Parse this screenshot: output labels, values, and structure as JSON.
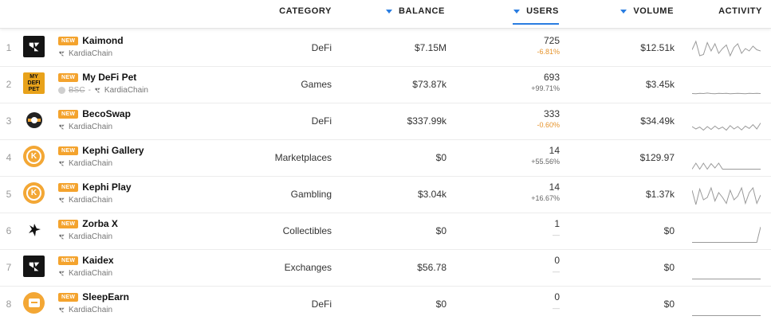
{
  "columns": {
    "category": "CATEGORY",
    "balance": "BALANCE",
    "users": "USERS",
    "volume": "VOLUME",
    "activity": "ACTIVITY"
  },
  "rows": [
    {
      "rank": "1",
      "badge": "NEW",
      "name": "Kaimond",
      "bsc": "",
      "chain": "KardiaChain",
      "category": "DeFi",
      "balance": "$7.15M",
      "users": "725",
      "users_change": "-6.81%",
      "change_type": "neg",
      "volume": "$12.51k",
      "logo": "kardia-logo",
      "activity": [
        0.55,
        0.2,
        0.8,
        0.75,
        0.25,
        0.6,
        0.3,
        0.7,
        0.5,
        0.35,
        0.8,
        0.45,
        0.3,
        0.7,
        0.5,
        0.6,
        0.4,
        0.55,
        0.6
      ]
    },
    {
      "rank": "2",
      "badge": "NEW",
      "name": "My DeFi Pet",
      "bsc": "BSC",
      "chain": "KardiaChain",
      "category": "Games",
      "balance": "$73.87k",
      "users": "693",
      "users_change": "+99.71%",
      "change_type": "pos",
      "volume": "$3.45k",
      "logo": "mydefipet-logo",
      "activity": [
        0.85,
        0.86,
        0.84,
        0.85,
        0.83,
        0.85,
        0.86,
        0.84,
        0.85,
        0.84,
        0.86,
        0.85,
        0.84,
        0.85,
        0.86,
        0.84,
        0.85,
        0.84,
        0.85
      ]
    },
    {
      "rank": "3",
      "badge": "NEW",
      "name": "BecoSwap",
      "bsc": "",
      "chain": "KardiaChain",
      "category": "DeFi",
      "balance": "$337.99k",
      "users": "333",
      "users_change": "-0.60%",
      "change_type": "neg",
      "volume": "$34.49k",
      "logo": "becoswap-logo",
      "activity": [
        0.7,
        0.8,
        0.72,
        0.85,
        0.7,
        0.82,
        0.68,
        0.8,
        0.72,
        0.85,
        0.66,
        0.8,
        0.7,
        0.84,
        0.68,
        0.78,
        0.62,
        0.8,
        0.55
      ]
    },
    {
      "rank": "4",
      "badge": "NEW",
      "name": "Kephi Gallery",
      "bsc": "",
      "chain": "KardiaChain",
      "category": "Marketplaces",
      "balance": "$0",
      "users": "14",
      "users_change": "+55.56%",
      "change_type": "pos",
      "volume": "$129.97",
      "logo": "kephi-gallery-logo",
      "activity": [
        0.95,
        0.7,
        0.95,
        0.7,
        0.95,
        0.72,
        0.9,
        0.7,
        0.95,
        0.95,
        0.95,
        0.95,
        0.95,
        0.95,
        0.95,
        0.95,
        0.95,
        0.95,
        0.95
      ]
    },
    {
      "rank": "5",
      "badge": "NEW",
      "name": "Kephi Play",
      "bsc": "",
      "chain": "KardiaChain",
      "category": "Gambling",
      "balance": "$3.04k",
      "users": "14",
      "users_change": "+16.67%",
      "change_type": "pos",
      "volume": "$1.37k",
      "logo": "kephi-play-logo",
      "activity": [
        0.3,
        0.9,
        0.25,
        0.7,
        0.6,
        0.2,
        0.75,
        0.4,
        0.6,
        0.85,
        0.3,
        0.7,
        0.55,
        0.2,
        0.85,
        0.4,
        0.2,
        0.85,
        0.5
      ]
    },
    {
      "rank": "6",
      "badge": "NEW",
      "name": "Zorba X",
      "bsc": "",
      "chain": "KardiaChain",
      "category": "Collectibles",
      "balance": "$0",
      "users": "1",
      "users_change": "—",
      "change_type": "none",
      "volume": "$0",
      "logo": "zorba-logo",
      "activity": [
        0.95,
        0.95,
        0.95,
        0.95,
        0.95,
        0.95,
        0.95,
        0.95,
        0.95,
        0.95,
        0.95,
        0.95,
        0.95,
        0.95,
        0.95,
        0.95,
        0.95,
        0.95,
        0.3
      ]
    },
    {
      "rank": "7",
      "badge": "NEW",
      "name": "Kaidex",
      "bsc": "",
      "chain": "KardiaChain",
      "category": "Exchanges",
      "balance": "$56.78",
      "users": "0",
      "users_change": "—",
      "change_type": "none",
      "volume": "$0",
      "logo": "kaidex-logo",
      "activity": [
        0.95,
        0.95,
        0.95,
        0.95,
        0.95,
        0.95,
        0.95,
        0.95,
        0.95,
        0.95,
        0.95,
        0.95,
        0.95,
        0.95,
        0.95,
        0.95,
        0.95,
        0.95,
        0.95
      ]
    },
    {
      "rank": "8",
      "badge": "NEW",
      "name": "SleepEarn",
      "bsc": "",
      "chain": "KardiaChain",
      "category": "DeFi",
      "balance": "$0",
      "users": "0",
      "users_change": "—",
      "change_type": "none",
      "volume": "$0",
      "logo": "sleepearn-logo",
      "activity": [
        0.95,
        0.95,
        0.95,
        0.95,
        0.95,
        0.95,
        0.95,
        0.95,
        0.95,
        0.95,
        0.95,
        0.95,
        0.95,
        0.95,
        0.95,
        0.95,
        0.95,
        0.95,
        0.95
      ]
    }
  ]
}
